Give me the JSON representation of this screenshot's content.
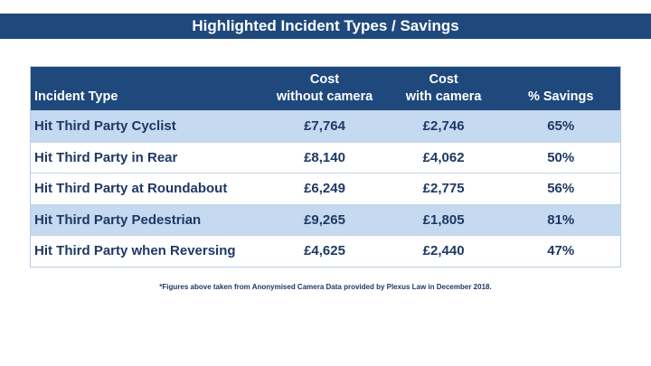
{
  "title": "Highlighted Incident Types / Savings",
  "table": {
    "headers": {
      "incident_type": "Incident Type",
      "cost_without": [
        "Cost",
        "without camera"
      ],
      "cost_with": [
        "Cost",
        "with camera"
      ],
      "savings": "% Savings"
    },
    "rows": [
      {
        "type": "Hit Third Party Cyclist",
        "without": "£7,764",
        "with": "£2,746",
        "savings": "65%"
      },
      {
        "type": "Hit Third Party in Rear",
        "without": "£8,140",
        "with": "£4,062",
        "savings": "50%"
      },
      {
        "type": "Hit Third Party at Roundabout",
        "without": "£6,249",
        "with": "£2,775",
        "savings": "56%"
      },
      {
        "type": "Hit Third Party Pedestrian",
        "without": "£9,265",
        "with": "£1,805",
        "savings": "81%"
      },
      {
        "type": "Hit Third Party when Reversing",
        "without": "£4,625",
        "with": "£2,440",
        "savings": "47%"
      }
    ]
  },
  "footnote": "*Figures above taken from Anonymised Camera Data provided by Plexus Law in December 2018.",
  "colors": {
    "header_bg": "#1f497d",
    "row_alt_bg": "#c5d9f1",
    "text": "#1f3864"
  }
}
